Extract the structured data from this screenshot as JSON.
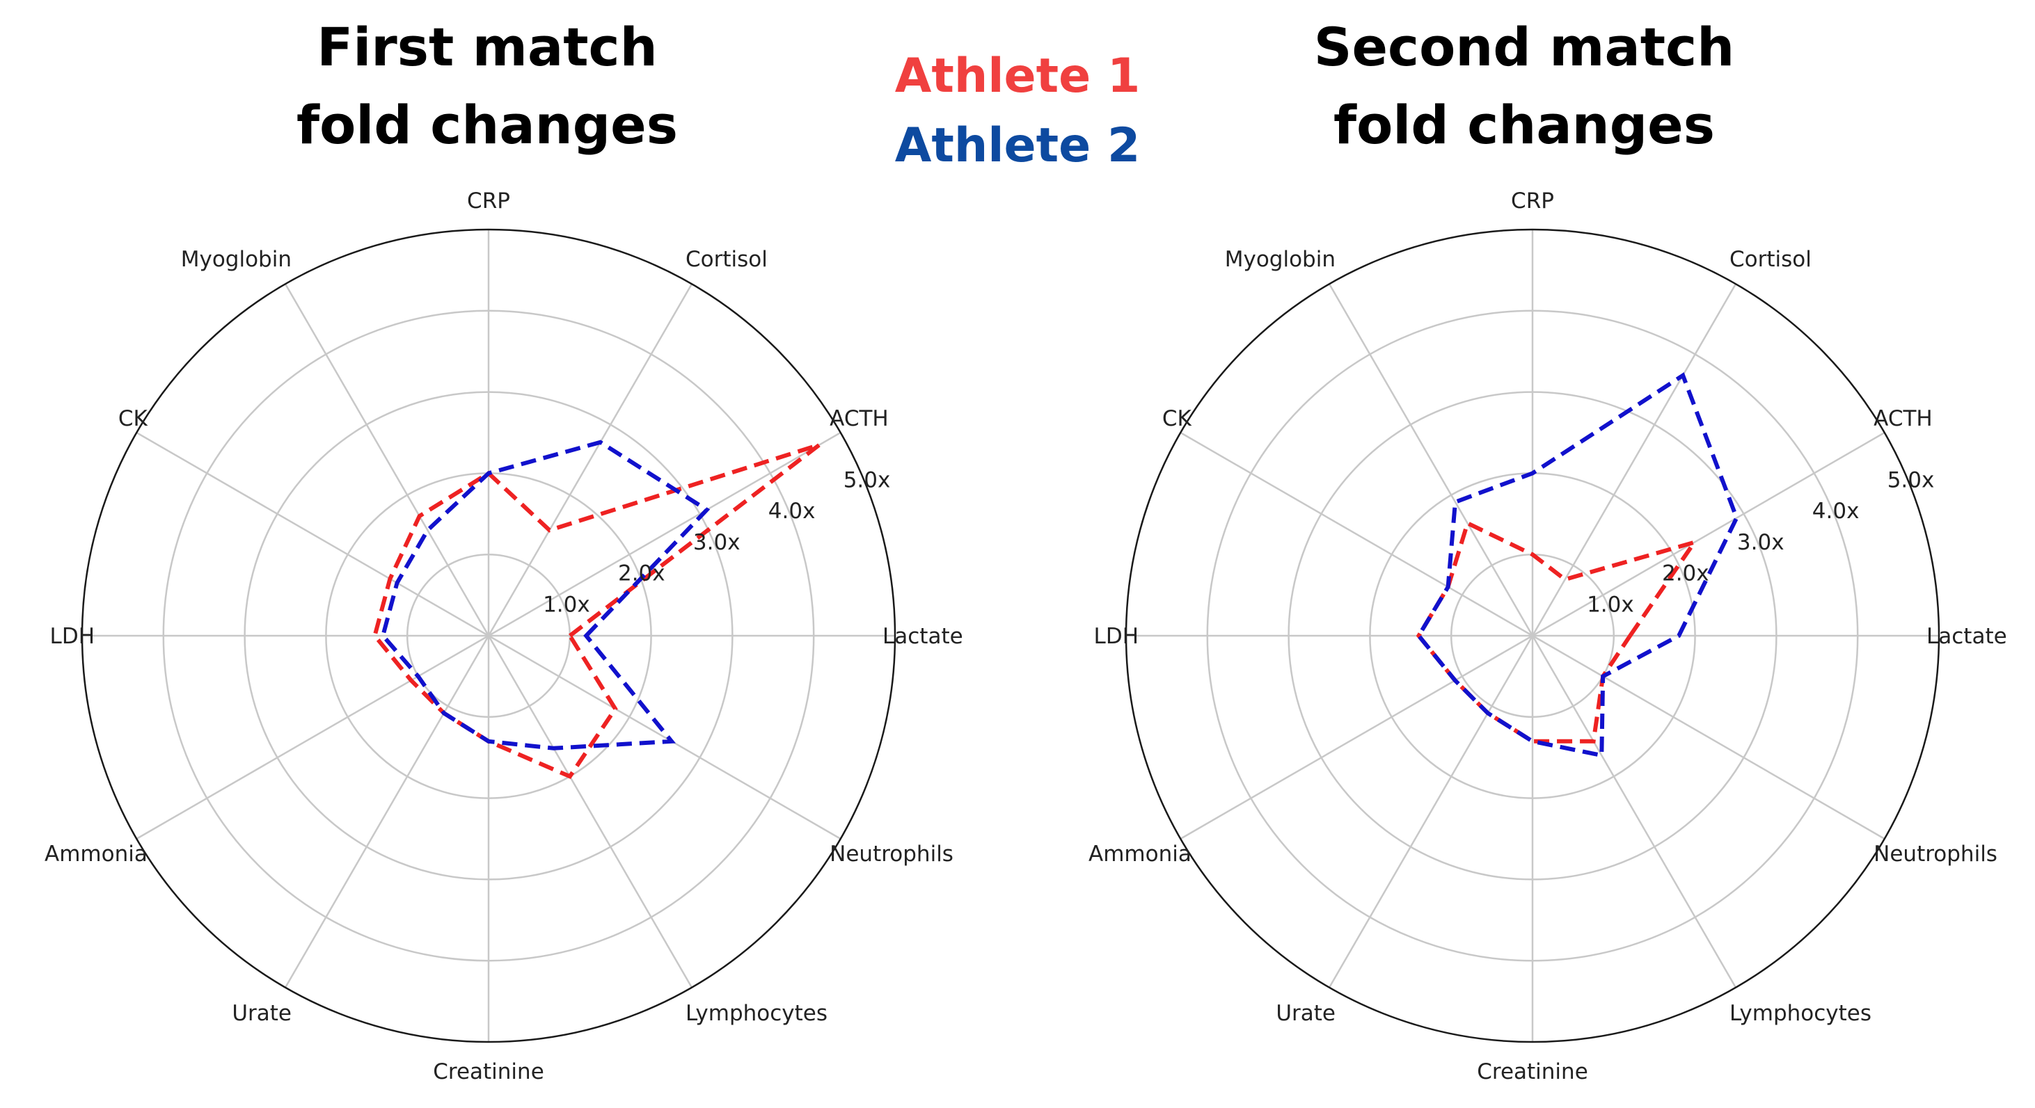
{
  "chart_data": [
    {
      "type": "radar",
      "title": "First match\nfold changes",
      "title_lines": [
        "First match",
        "fold changes"
      ],
      "axes": [
        "Lactate",
        "ACTH",
        "Cortisol",
        "CRP",
        "Myoglobin",
        "CK",
        "LDH",
        "Ammonia",
        "Urate",
        "Creatinine",
        "Lymphocytes",
        "Neutrophils"
      ],
      "rlim": [
        0,
        5
      ],
      "tick_labels": [
        "1.0x",
        "2.0x",
        "3.0x",
        "4.0x",
        "5.0x"
      ],
      "grid": true,
      "series": [
        {
          "name": "Athlete 1",
          "color": "#ee2222",
          "values": [
            1.0,
            4.7,
            1.5,
            2.0,
            1.7,
            1.4,
            1.4,
            1.1,
            1.1,
            1.3,
            2.0,
            1.8
          ]
        },
        {
          "name": "Athlete 2",
          "color": "#1111cc",
          "values": [
            1.2,
            3.1,
            2.75,
            2.0,
            1.5,
            1.3,
            1.3,
            1.0,
            1.1,
            1.3,
            1.6,
            2.6
          ]
        }
      ]
    },
    {
      "type": "radar",
      "title": "Second match\nfold changes",
      "title_lines": [
        "Second match",
        "fold changes"
      ],
      "axes": [
        "Lactate",
        "ACTH",
        "Cortisol",
        "CRP",
        "Myoglobin",
        "CK",
        "LDH",
        "Ammonia",
        "Urate",
        "Creatinine",
        "Lymphocytes",
        "Neutrophils"
      ],
      "rlim": [
        0,
        5
      ],
      "tick_labels": [
        "1.0x",
        "2.0x",
        "3.0x",
        "4.0x",
        "5.0x"
      ],
      "grid": true,
      "series": [
        {
          "name": "Athlete 1",
          "color": "#ee2222",
          "values": [
            1.2,
            2.3,
            0.8,
            1.0,
            1.6,
            1.2,
            1.4,
            1.1,
            1.1,
            1.3,
            1.5,
            1.0
          ]
        },
        {
          "name": "Athlete 2",
          "color": "#1111cc",
          "values": [
            1.8,
            2.9,
            3.7,
            2.0,
            1.9,
            1.2,
            1.4,
            1.1,
            1.1,
            1.3,
            1.7,
            1.0
          ]
        }
      ]
    }
  ],
  "legend": {
    "athlete1_label": "Athlete 1",
    "athlete1_color": "#f0403f",
    "athlete2_label": "Athlete 2",
    "athlete2_color": "#0d4aa0"
  }
}
